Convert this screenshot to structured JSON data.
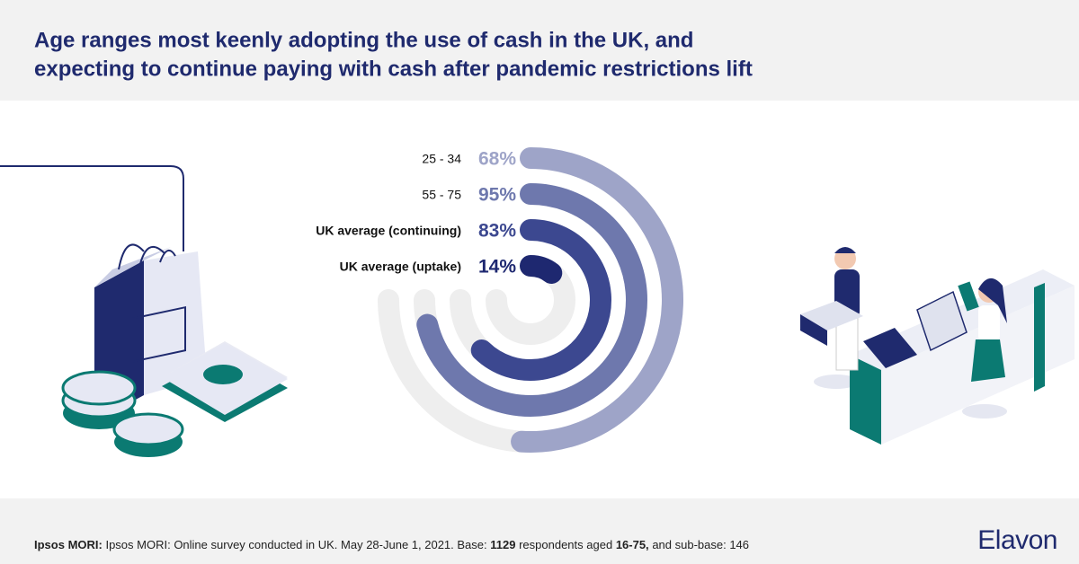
{
  "chart_data": {
    "type": "radial-bar",
    "title": "Age ranges most keenly adopting the use of cash in the UK, and",
    "subtitle": "expecting to continue paying with cash after pandemic restrictions lift",
    "categories": [
      "25 - 34",
      "55 - 75",
      "UK average (continuing)",
      "UK average (uptake)"
    ],
    "values": [
      68,
      95,
      83,
      14
    ],
    "value_labels": [
      "68%",
      "95%",
      "83%",
      "14%"
    ],
    "colors": [
      "#9ea4c8",
      "#6e78ad",
      "#3c4890",
      "#1e2870"
    ],
    "ylim": [
      0,
      100
    ]
  },
  "footer": {
    "source": "Ipsos MORI:",
    "text_1": "Ipsos MORI: Online survey conducted in UK. May 28-June 1, 2021. Base:",
    "base": "1129",
    "text_2": "respondents aged",
    "ages": "16-75,",
    "text_3": "and sub-base: 146"
  },
  "logo": "Elavon"
}
